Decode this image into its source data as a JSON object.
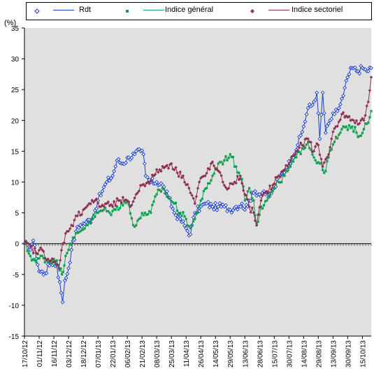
{
  "y_unit_label": "(%)",
  "colors": {
    "plot_background": "#e0e0e0",
    "series": [
      "#1a3fcc",
      "#10a050",
      "#903050"
    ]
  },
  "chart_data": {
    "type": "line",
    "ylabel": "(%)",
    "ylim": [
      -15,
      35
    ],
    "y_ticks": [
      35,
      30,
      25,
      20,
      15,
      10,
      5,
      0,
      -5,
      -10,
      -15
    ],
    "grid": false,
    "legend_position": "top",
    "x_tick_labels": [
      "17/10/12",
      "01/11/12",
      "16/11/12",
      "03/12/12",
      "18/12/12",
      "07/01/13",
      "22/01/13",
      "06/02/13",
      "21/02/13",
      "08/03/13",
      "25/03/13",
      "11/04/13",
      "26/04/13",
      "14/05/13",
      "29/05/13",
      "13/06/13",
      "28/06/13",
      "15/07/13",
      "30/07/13",
      "14/08/13",
      "29/08/13",
      "13/09/13",
      "30/09/13",
      "15/10/13"
    ],
    "series": [
      {
        "name": "Rdt",
        "color": "#1a3fcc",
        "marker": "diamond-open",
        "anchors": [
          [
            0,
            0
          ],
          [
            0.3,
            -1
          ],
          [
            0.6,
            0.5
          ],
          [
            1,
            -4.5
          ],
          [
            1.4,
            -4.8
          ],
          [
            1.8,
            -3
          ],
          [
            2.2,
            -3.5
          ],
          [
            2.5,
            -8
          ],
          [
            2.6,
            -9.5
          ],
          [
            2.75,
            -6
          ],
          [
            3,
            -4
          ],
          [
            3.2,
            -1
          ],
          [
            3.5,
            2
          ],
          [
            3.8,
            3
          ],
          [
            4.2,
            3.5
          ],
          [
            4.6,
            4
          ],
          [
            5,
            7
          ],
          [
            5.3,
            8.5
          ],
          [
            5.6,
            10
          ],
          [
            6,
            11
          ],
          [
            6.3,
            13.5
          ],
          [
            6.7,
            13
          ],
          [
            7.1,
            14
          ],
          [
            7.5,
            14.5
          ],
          [
            7.9,
            15
          ],
          [
            8.1,
            14.5
          ],
          [
            8.25,
            11
          ],
          [
            8.6,
            10
          ],
          [
            9,
            10
          ],
          [
            9.4,
            9.5
          ],
          [
            9.8,
            7.5
          ],
          [
            10.2,
            5
          ],
          [
            10.6,
            4
          ],
          [
            11,
            2.5
          ],
          [
            11.3,
            1.5
          ],
          [
            11.6,
            5
          ],
          [
            12,
            6
          ],
          [
            12.4,
            6.5
          ],
          [
            12.8,
            6
          ],
          [
            13.2,
            6
          ],
          [
            13.6,
            6
          ],
          [
            14,
            5.5
          ],
          [
            14.4,
            6
          ],
          [
            14.8,
            6.5
          ],
          [
            15,
            5.5
          ],
          [
            15.3,
            7
          ],
          [
            15.7,
            8.5
          ],
          [
            16,
            8
          ],
          [
            16.3,
            8.5
          ],
          [
            16.6,
            7.5
          ],
          [
            17,
            9
          ],
          [
            17.4,
            11
          ],
          [
            17.8,
            12
          ],
          [
            18.2,
            14
          ],
          [
            18.6,
            16
          ],
          [
            19,
            19
          ],
          [
            19.3,
            22
          ],
          [
            19.6,
            22.5
          ],
          [
            19.9,
            24.5
          ],
          [
            20.1,
            17
          ],
          [
            20.3,
            24.5
          ],
          [
            20.5,
            18
          ],
          [
            20.8,
            20
          ],
          [
            21.1,
            21
          ],
          [
            21.4,
            22
          ],
          [
            21.7,
            24
          ],
          [
            22,
            27
          ],
          [
            22.3,
            28.5
          ],
          [
            22.7,
            28
          ],
          [
            23,
            28.5
          ],
          [
            23.3,
            28
          ],
          [
            23.6,
            28.5
          ]
        ]
      },
      {
        "name": "Indice général",
        "color": "#10a050",
        "marker": "square",
        "anchors": [
          [
            0,
            0
          ],
          [
            0.4,
            -2
          ],
          [
            0.8,
            -3
          ],
          [
            1.2,
            -2
          ],
          [
            1.6,
            -3
          ],
          [
            2,
            -2.5
          ],
          [
            2.3,
            -3.5
          ],
          [
            2.55,
            -5
          ],
          [
            2.8,
            -2
          ],
          [
            3.1,
            0
          ],
          [
            3.4,
            1
          ],
          [
            3.8,
            2
          ],
          [
            4.2,
            3
          ],
          [
            4.6,
            4
          ],
          [
            5,
            5
          ],
          [
            5.4,
            5.5
          ],
          [
            5.8,
            5
          ],
          [
            6.2,
            5.5
          ],
          [
            6.6,
            6.5
          ],
          [
            7,
            7
          ],
          [
            7.4,
            3
          ],
          [
            7.8,
            4
          ],
          [
            8.2,
            5
          ],
          [
            8.6,
            5
          ],
          [
            9,
            8
          ],
          [
            9.4,
            9
          ],
          [
            9.8,
            7.5
          ],
          [
            10.2,
            6.5
          ],
          [
            10.6,
            5
          ],
          [
            11,
            4
          ],
          [
            11.3,
            2.5
          ],
          [
            11.6,
            4
          ],
          [
            12,
            7
          ],
          [
            12.4,
            9
          ],
          [
            12.8,
            11
          ],
          [
            13.2,
            13
          ],
          [
            13.6,
            13.5
          ],
          [
            14,
            14.5
          ],
          [
            14.4,
            12.5
          ],
          [
            14.8,
            10.5
          ],
          [
            15,
            7
          ],
          [
            15.3,
            9
          ],
          [
            15.6,
            7
          ],
          [
            15.8,
            3
          ],
          [
            16.1,
            6
          ],
          [
            16.5,
            7
          ],
          [
            16.9,
            8.5
          ],
          [
            17.3,
            10
          ],
          [
            17.7,
            11
          ],
          [
            18.1,
            12.5
          ],
          [
            18.5,
            14
          ],
          [
            18.9,
            15.5
          ],
          [
            19.3,
            16.5
          ],
          [
            19.7,
            14
          ],
          [
            20.1,
            13
          ],
          [
            20.4,
            11.5
          ],
          [
            20.7,
            14
          ],
          [
            21.1,
            16.5
          ],
          [
            21.5,
            18
          ],
          [
            21.9,
            19
          ],
          [
            22.3,
            19
          ],
          [
            22.6,
            18
          ],
          [
            22.9,
            17.5
          ],
          [
            23.2,
            19.5
          ],
          [
            23.5,
            20.5
          ],
          [
            23.6,
            21.5
          ]
        ]
      },
      {
        "name": "Indice sectoriel",
        "color": "#903050",
        "marker": "diamond",
        "anchors": [
          [
            0,
            0
          ],
          [
            0.4,
            -0.5
          ],
          [
            0.8,
            -1.5
          ],
          [
            1.2,
            -1
          ],
          [
            1.6,
            -2.5
          ],
          [
            2,
            -3
          ],
          [
            2.35,
            -4
          ],
          [
            2.6,
            0
          ],
          [
            2.9,
            2
          ],
          [
            3.2,
            3
          ],
          [
            3.6,
            4.5
          ],
          [
            4,
            5.5
          ],
          [
            4.4,
            6.5
          ],
          [
            4.8,
            7
          ],
          [
            5.2,
            6
          ],
          [
            5.6,
            6.5
          ],
          [
            6,
            6
          ],
          [
            6.4,
            7
          ],
          [
            6.8,
            7
          ],
          [
            7.2,
            6
          ],
          [
            7.6,
            8
          ],
          [
            8,
            9.5
          ],
          [
            8.4,
            10
          ],
          [
            8.8,
            11
          ],
          [
            9.2,
            12
          ],
          [
            9.6,
            12.5
          ],
          [
            10,
            13
          ],
          [
            10.4,
            11.5
          ],
          [
            10.8,
            11
          ],
          [
            11.2,
            9
          ],
          [
            11.6,
            6.5
          ],
          [
            11.9,
            10
          ],
          [
            12.3,
            11
          ],
          [
            12.7,
            13
          ],
          [
            13.1,
            12
          ],
          [
            13.5,
            10
          ],
          [
            13.9,
            9
          ],
          [
            14.3,
            10
          ],
          [
            14.7,
            11
          ],
          [
            15,
            8
          ],
          [
            15.3,
            6
          ],
          [
            15.6,
            5
          ],
          [
            15.8,
            3
          ],
          [
            16.1,
            7
          ],
          [
            16.5,
            8.5
          ],
          [
            16.9,
            9.5
          ],
          [
            17.3,
            11
          ],
          [
            17.7,
            12
          ],
          [
            18.1,
            13.5
          ],
          [
            18.5,
            15
          ],
          [
            18.9,
            16
          ],
          [
            19.3,
            17
          ],
          [
            19.7,
            15
          ],
          [
            20,
            16
          ],
          [
            20.3,
            12.5
          ],
          [
            20.6,
            14
          ],
          [
            20.9,
            17
          ],
          [
            21.2,
            19
          ],
          [
            21.6,
            21
          ],
          [
            22,
            20.5
          ],
          [
            22.4,
            20
          ],
          [
            22.8,
            19.5
          ],
          [
            23.1,
            20
          ],
          [
            23.4,
            23
          ],
          [
            23.6,
            27
          ]
        ]
      }
    ]
  }
}
